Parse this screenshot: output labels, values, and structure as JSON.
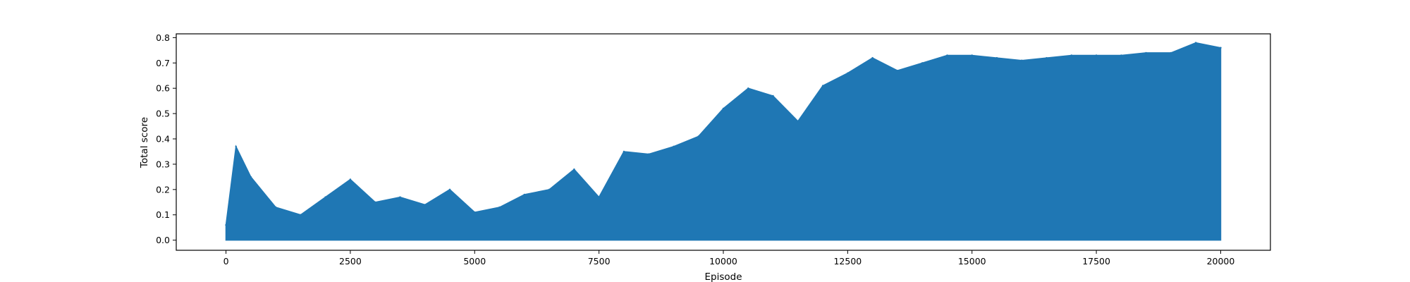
{
  "colors": {
    "series": "#1f77b4",
    "axes": "#000000",
    "background": "#ffffff"
  },
  "chart_data": {
    "type": "line",
    "title": "",
    "xlabel": "Episode",
    "ylabel": "Total score",
    "xlim": [
      -1000,
      21000
    ],
    "ylim": [
      -0.04,
      0.815
    ],
    "grid": false,
    "legend": "none",
    "x_ticks": [
      {
        "value": 0,
        "label": "0"
      },
      {
        "value": 2500,
        "label": "2500"
      },
      {
        "value": 5000,
        "label": "5000"
      },
      {
        "value": 7500,
        "label": "7500"
      },
      {
        "value": 10000,
        "label": "10000"
      },
      {
        "value": 12500,
        "label": "12500"
      },
      {
        "value": 15000,
        "label": "15000"
      },
      {
        "value": 17500,
        "label": "17500"
      },
      {
        "value": 20000,
        "label": "20000"
      }
    ],
    "y_ticks": [
      {
        "value": 0.0,
        "label": "0.0"
      },
      {
        "value": 0.1,
        "label": "0.1"
      },
      {
        "value": 0.2,
        "label": "0.2"
      },
      {
        "value": 0.3,
        "label": "0.3"
      },
      {
        "value": 0.4,
        "label": "0.4"
      },
      {
        "value": 0.5,
        "label": "0.5"
      },
      {
        "value": 0.6,
        "label": "0.6"
      },
      {
        "value": 0.7,
        "label": "0.7"
      },
      {
        "value": 0.8,
        "label": "0.8"
      }
    ],
    "series": [
      {
        "x": [
          0,
          200,
          500,
          1000,
          1500,
          2000,
          2500,
          3000,
          3500,
          4000,
          4500,
          5000,
          5500,
          6000,
          6500,
          7000,
          7500,
          8000,
          8500,
          9000,
          9500,
          10000,
          10500,
          11000,
          11500,
          12000,
          12500,
          13000,
          13500,
          14000,
          14500,
          15000,
          15500,
          16000,
          16500,
          17000,
          17500,
          18000,
          18500,
          19000,
          19500,
          20000
        ],
        "y_min": [
          0.0,
          0.0,
          0.0,
          0.0,
          0.0,
          0.0,
          0.0,
          0.0,
          0.0,
          0.0,
          0.0,
          0.0,
          0.0,
          0.0,
          0.0,
          0.0,
          0.0,
          0.0,
          0.0,
          0.0,
          0.0,
          0.0,
          0.0,
          0.0,
          0.0,
          0.0,
          0.0,
          0.0,
          0.0,
          0.0,
          0.0,
          0.0,
          0.0,
          0.0,
          0.0,
          0.0,
          0.0,
          0.0,
          0.0,
          0.0,
          0.0,
          0.0
        ],
        "y_max": [
          0.06,
          0.37,
          0.25,
          0.13,
          0.1,
          0.17,
          0.24,
          0.15,
          0.17,
          0.14,
          0.2,
          0.11,
          0.13,
          0.18,
          0.2,
          0.28,
          0.17,
          0.35,
          0.34,
          0.37,
          0.41,
          0.52,
          0.6,
          0.57,
          0.47,
          0.61,
          0.66,
          0.72,
          0.67,
          0.7,
          0.73,
          0.73,
          0.72,
          0.71,
          0.72,
          0.73,
          0.73,
          0.73,
          0.74,
          0.74,
          0.78,
          0.76
        ]
      }
    ]
  }
}
